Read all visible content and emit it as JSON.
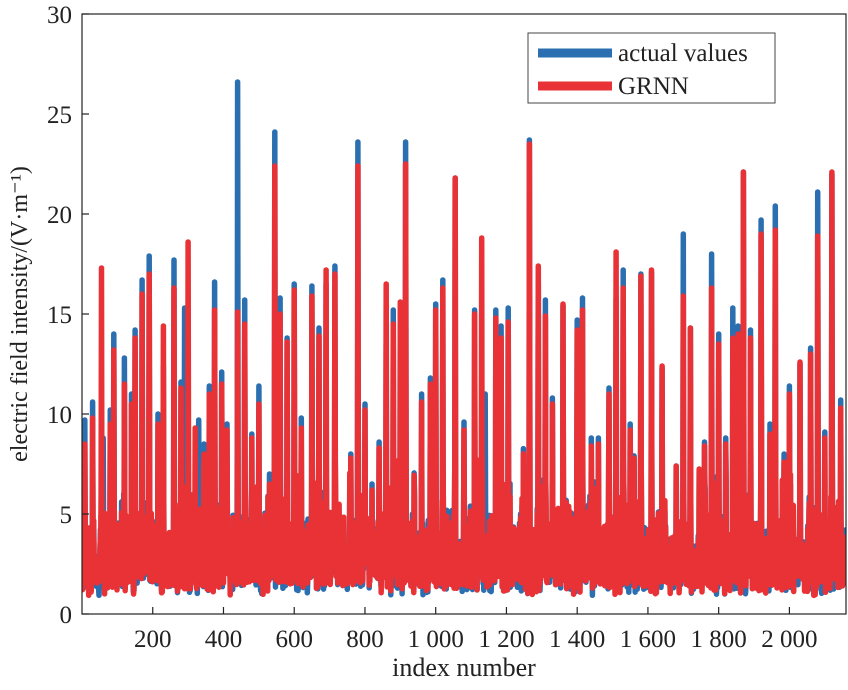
{
  "chart_data": {
    "type": "line",
    "xlabel": "index number",
    "ylabel": "electric field intensity/(V·m⁻¹)",
    "xlim": [
      0,
      2160
    ],
    "ylim": [
      0,
      30
    ],
    "x_ticks": [
      200,
      400,
      600,
      800,
      1000,
      1200,
      1400,
      1600,
      1800,
      2000
    ],
    "x_tick_labels": [
      "200",
      "400",
      "600",
      "800",
      "1 000",
      "1 200",
      "1 400",
      "1 600",
      "1 800",
      "2 000"
    ],
    "y_ticks": [
      0,
      5,
      10,
      15,
      20,
      25,
      30
    ],
    "y_tick_labels": [
      "0",
      "5",
      "10",
      "15",
      "20",
      "25",
      "30"
    ],
    "grid": false,
    "legend": {
      "position": "top-right",
      "entries": [
        "actual values",
        "GRNN"
      ]
    },
    "series": [
      {
        "name": "actual values",
        "color": "#2b6fb0",
        "peaks": [
          [
            8,
            9.7
          ],
          [
            30,
            10.6
          ],
          [
            60,
            8.8
          ],
          [
            80,
            10.2
          ],
          [
            90,
            14.0
          ],
          [
            120,
            12.8
          ],
          [
            140,
            11.0
          ],
          [
            150,
            14.2
          ],
          [
            170,
            16.7
          ],
          [
            190,
            17.9
          ],
          [
            215,
            10.0
          ],
          [
            230,
            12.4
          ],
          [
            260,
            17.7
          ],
          [
            280,
            11.6
          ],
          [
            290,
            15.3
          ],
          [
            330,
            9.7
          ],
          [
            345,
            8.5
          ],
          [
            360,
            11.4
          ],
          [
            375,
            16.6
          ],
          [
            395,
            12.1
          ],
          [
            410,
            9.5
          ],
          [
            440,
            26.6
          ],
          [
            460,
            15.7
          ],
          [
            480,
            9.0
          ],
          [
            500,
            11.4
          ],
          [
            530,
            7.0
          ],
          [
            545,
            24.1
          ],
          [
            560,
            15.8
          ],
          [
            580,
            13.8
          ],
          [
            600,
            16.5
          ],
          [
            620,
            9.8
          ],
          [
            650,
            16.4
          ],
          [
            670,
            14.3
          ],
          [
            690,
            16.5
          ],
          [
            715,
            17.4
          ],
          [
            760,
            8.0
          ],
          [
            780,
            23.6
          ],
          [
            800,
            10.5
          ],
          [
            820,
            6.5
          ],
          [
            840,
            8.6
          ],
          [
            860,
            13.5
          ],
          [
            880,
            15.2
          ],
          [
            900,
            15.0
          ],
          [
            915,
            23.6
          ],
          [
            940,
            6.0
          ],
          [
            960,
            11.0
          ],
          [
            985,
            11.8
          ],
          [
            1000,
            15.5
          ],
          [
            1020,
            16.7
          ],
          [
            1055,
            21.8
          ],
          [
            1080,
            9.6
          ],
          [
            1110,
            15.2
          ],
          [
            1140,
            11.0
          ],
          [
            1170,
            15.2
          ],
          [
            1185,
            14.4
          ],
          [
            1205,
            15.3
          ],
          [
            1240,
            5.0
          ],
          [
            1265,
            23.7
          ],
          [
            1290,
            16.6
          ],
          [
            1310,
            15.7
          ],
          [
            1330,
            10.8
          ],
          [
            1360,
            15.4
          ],
          [
            1400,
            14.7
          ],
          [
            1415,
            15.8
          ],
          [
            1440,
            8.8
          ],
          [
            1460,
            8.8
          ],
          [
            1490,
            11.3
          ],
          [
            1510,
            15.8
          ],
          [
            1530,
            17.2
          ],
          [
            1550,
            9.5
          ],
          [
            1580,
            17.0
          ],
          [
            1610,
            17.1
          ],
          [
            1640,
            12.3
          ],
          [
            1680,
            7.4
          ],
          [
            1700,
            19.0
          ],
          [
            1720,
            14.3
          ],
          [
            1760,
            8.6
          ],
          [
            1780,
            18.0
          ],
          [
            1800,
            14.0
          ],
          [
            1820,
            8.8
          ],
          [
            1840,
            15.3
          ],
          [
            1855,
            14.4
          ],
          [
            1870,
            22.1
          ],
          [
            1890,
            14.2
          ],
          [
            1920,
            19.7
          ],
          [
            1945,
            9.5
          ],
          [
            1960,
            20.4
          ],
          [
            1985,
            8.0
          ],
          [
            2000,
            11.4
          ],
          [
            2030,
            12.5
          ],
          [
            2060,
            13.3
          ],
          [
            2080,
            21.1
          ],
          [
            2100,
            9.1
          ],
          [
            2120,
            22.0
          ],
          [
            2145,
            10.7
          ],
          [
            2158,
            4.2
          ]
        ]
      },
      {
        "name": "GRNN",
        "color": "#e83236",
        "peaks": [
          [
            8,
            8.5
          ],
          [
            30,
            9.8
          ],
          [
            55,
            17.3
          ],
          [
            80,
            9.5
          ],
          [
            90,
            13.2
          ],
          [
            120,
            11.5
          ],
          [
            140,
            10.5
          ],
          [
            150,
            13.8
          ],
          [
            170,
            16.0
          ],
          [
            190,
            17.0
          ],
          [
            215,
            9.5
          ],
          [
            230,
            14.4
          ],
          [
            260,
            16.3
          ],
          [
            280,
            11.3
          ],
          [
            300,
            18.6
          ],
          [
            320,
            9.3
          ],
          [
            345,
            8.0
          ],
          [
            360,
            11.0
          ],
          [
            375,
            15.2
          ],
          [
            395,
            11.5
          ],
          [
            410,
            9.2
          ],
          [
            440,
            15.1
          ],
          [
            460,
            14.5
          ],
          [
            480,
            8.8
          ],
          [
            500,
            10.5
          ],
          [
            530,
            6.5
          ],
          [
            545,
            22.4
          ],
          [
            560,
            15.0
          ],
          [
            580,
            13.6
          ],
          [
            600,
            16.2
          ],
          [
            620,
            9.3
          ],
          [
            650,
            15.9
          ],
          [
            670,
            13.9
          ],
          [
            690,
            17.2
          ],
          [
            715,
            17.0
          ],
          [
            760,
            7.8
          ],
          [
            780,
            22.4
          ],
          [
            800,
            10.2
          ],
          [
            820,
            6.2
          ],
          [
            840,
            8.3
          ],
          [
            860,
            16.5
          ],
          [
            880,
            14.5
          ],
          [
            900,
            15.6
          ],
          [
            915,
            22.5
          ],
          [
            940,
            5.8
          ],
          [
            960,
            10.6
          ],
          [
            985,
            11.5
          ],
          [
            1000,
            15.2
          ],
          [
            1020,
            16.3
          ],
          [
            1055,
            21.8
          ],
          [
            1080,
            9.2
          ],
          [
            1110,
            15.0
          ],
          [
            1130,
            18.8
          ],
          [
            1170,
            14.8
          ],
          [
            1185,
            13.8
          ],
          [
            1205,
            14.6
          ],
          [
            1240,
            4.8
          ],
          [
            1265,
            23.5
          ],
          [
            1290,
            17.4
          ],
          [
            1310,
            14.9
          ],
          [
            1330,
            10.5
          ],
          [
            1360,
            15.5
          ],
          [
            1400,
            14.2
          ],
          [
            1415,
            15.2
          ],
          [
            1440,
            8.4
          ],
          [
            1460,
            8.5
          ],
          [
            1490,
            11.0
          ],
          [
            1510,
            18.1
          ],
          [
            1530,
            16.3
          ],
          [
            1550,
            9.2
          ],
          [
            1580,
            16.9
          ],
          [
            1610,
            17.2
          ],
          [
            1640,
            12.4
          ],
          [
            1680,
            7.4
          ],
          [
            1700,
            15.9
          ],
          [
            1720,
            14.3
          ],
          [
            1760,
            8.4
          ],
          [
            1780,
            16.3
          ],
          [
            1800,
            13.5
          ],
          [
            1820,
            8.5
          ],
          [
            1840,
            13.8
          ],
          [
            1855,
            14.0
          ],
          [
            1870,
            22.1
          ],
          [
            1890,
            13.8
          ],
          [
            1920,
            19.0
          ],
          [
            1945,
            9.0
          ],
          [
            1960,
            19.2
          ],
          [
            1985,
            7.6
          ],
          [
            2000,
            11.0
          ],
          [
            2030,
            12.6
          ],
          [
            2060,
            13.0
          ],
          [
            2080,
            18.9
          ],
          [
            2100,
            8.8
          ],
          [
            2120,
            22.1
          ],
          [
            2145,
            10.3
          ],
          [
            2158,
            3.8
          ]
        ]
      }
    ]
  }
}
